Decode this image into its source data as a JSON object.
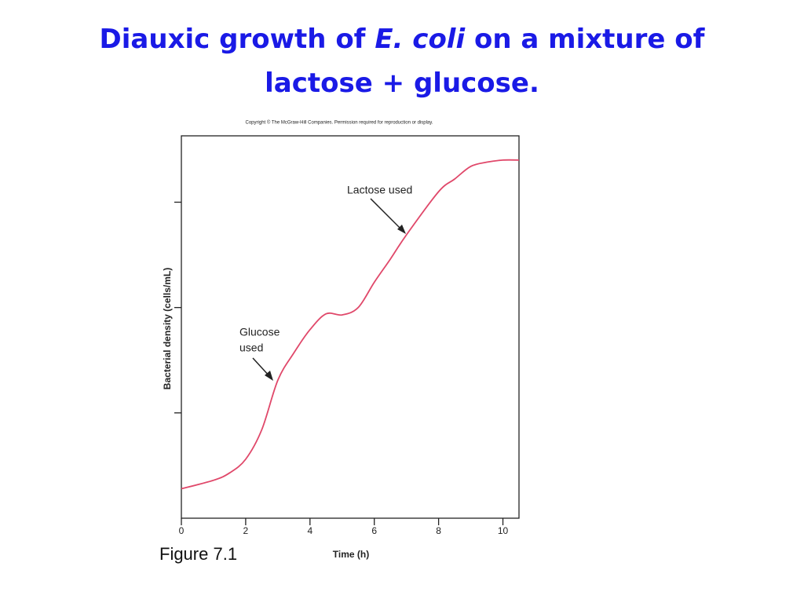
{
  "slide_title": {
    "before": "Diauxic growth of",
    "italic": "E. coli",
    "after": "on a mixture of",
    "line2": "lactose + glucose."
  },
  "copyright": "Copyright © The McGraw-Hill Companies. Permission required for reproduction or display.",
  "figure_label": "Figure 7.1",
  "chart_data": {
    "type": "line",
    "x": [
      0,
      1,
      1.5,
      2,
      2.5,
      3,
      3.5,
      4,
      4.5,
      5,
      5.5,
      6,
      6.5,
      7,
      8,
      8.5,
      9,
      9.5,
      10,
      10.5
    ],
    "values": [
      0.28,
      0.36,
      0.43,
      0.56,
      0.84,
      1.31,
      1.57,
      1.79,
      1.94,
      1.93,
      2.0,
      2.24,
      2.46,
      2.69,
      3.1,
      3.22,
      3.34,
      3.38,
      3.4,
      3.4
    ],
    "color": "#e0486a",
    "x_label": "Time (h)",
    "y_label": "Bacterial density (cells/mL)",
    "xlim": [
      0,
      10.5
    ],
    "xticks": [
      0,
      2,
      4,
      6,
      8,
      10
    ],
    "ylim": [
      0,
      3.63
    ],
    "yticks": [
      1,
      2,
      3
    ],
    "annotations": [
      {
        "lines": [
          "Glucose",
          "used"
        ]
      },
      {
        "lines": [
          "Lactose used"
        ]
      }
    ]
  }
}
